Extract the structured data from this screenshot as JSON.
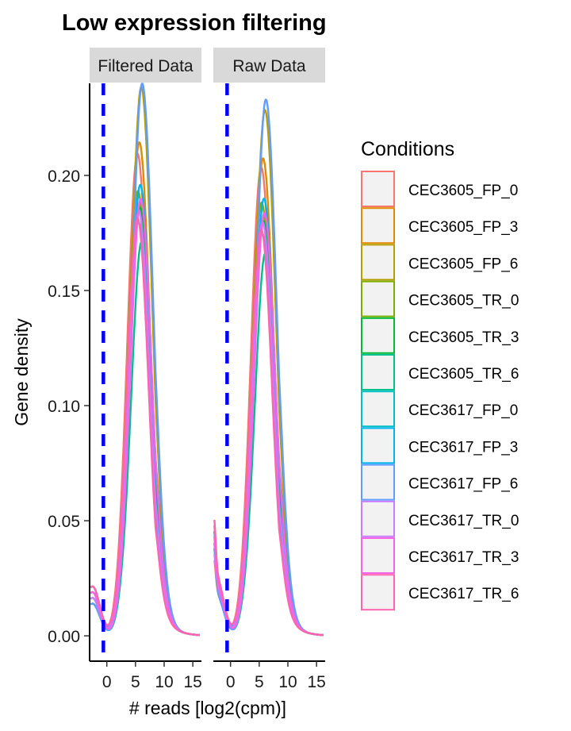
{
  "chart_data": {
    "type": "line",
    "title": "Low expression filtering",
    "xlabel": "# reads [log2(cpm)]",
    "ylabel": "Gene density",
    "panels": [
      "Filtered Data",
      "Raw Data"
    ],
    "xlim": [
      -3,
      16.5
    ],
    "ylim": [
      -0.011,
      0.24
    ],
    "x_ticks": [
      0,
      5,
      10,
      15
    ],
    "y_ticks": [
      0.0,
      0.05,
      0.1,
      0.15,
      0.2
    ],
    "y_tick_labels": [
      "0.00",
      "0.05",
      "0.10",
      "0.15",
      "0.20"
    ],
    "cutoff_line": {
      "x": -0.6,
      "color": "#0000FF",
      "style": "dashed"
    },
    "legend": {
      "title": "Conditions",
      "position": "right"
    },
    "series": [
      {
        "name": "CEC3605_FP_0",
        "color": "#F8766D",
        "peaks": [
          0.204,
          0.198
        ]
      },
      {
        "name": "CEC3605_FP_3",
        "color": "#DE8C00",
        "peaks": [
          0.21,
          0.203
        ]
      },
      {
        "name": "CEC3605_FP_6",
        "color": "#B79F00",
        "peaks": [
          0.235,
          0.225
        ]
      },
      {
        "name": "CEC3605_TR_0",
        "color": "#7CAE00",
        "peaks": [
          0.188,
          0.183
        ]
      },
      {
        "name": "CEC3605_TR_3",
        "color": "#00BA38",
        "peaks": [
          0.182,
          0.176
        ]
      },
      {
        "name": "CEC3605_TR_6",
        "color": "#00C08B",
        "peaks": [
          0.168,
          0.163
        ]
      },
      {
        "name": "CEC3617_FP_0",
        "color": "#00BFC4",
        "peaks": [
          0.175,
          0.17
        ]
      },
      {
        "name": "CEC3617_FP_3",
        "color": "#00B4F0",
        "peaks": [
          0.192,
          0.186
        ]
      },
      {
        "name": "CEC3617_FP_6",
        "color": "#619CFF",
        "peaks": [
          0.237,
          0.23
        ]
      },
      {
        "name": "CEC3617_TR_0",
        "color": "#C77CFF",
        "peaks": [
          0.18,
          0.175
        ]
      },
      {
        "name": "CEC3617_TR_3",
        "color": "#F564E3",
        "peaks": [
          0.186,
          0.18
        ]
      },
      {
        "name": "CEC3617_TR_6",
        "color": "#FF64B0",
        "peaks": [
          0.176,
          0.171
        ]
      }
    ]
  }
}
